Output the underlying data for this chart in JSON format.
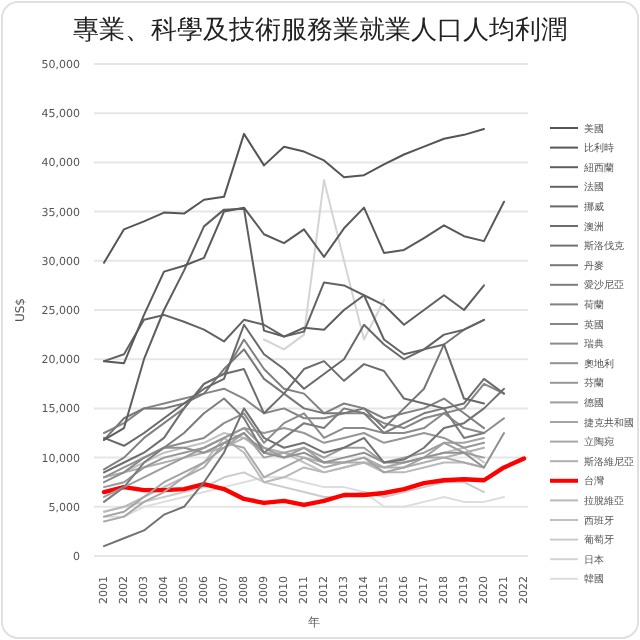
{
  "chart_data": {
    "type": "line",
    "title": "專業、科學及技術服務業就業人口人均利潤",
    "xlabel": "年",
    "ylabel": "US$",
    "categories": [
      "2001",
      "2002",
      "2003",
      "2004",
      "2005",
      "2006",
      "2007",
      "2008",
      "2009",
      "2010",
      "2011",
      "2012",
      "2013",
      "2014",
      "2015",
      "2016",
      "2017",
      "2018",
      "2019",
      "2020",
      "2021",
      "2022"
    ],
    "ylim": [
      0,
      50000
    ],
    "yticks": [
      {
        "value": 0,
        "label": "0"
      },
      {
        "value": 5000,
        "label": "5,000"
      },
      {
        "value": 10000,
        "label": "10,000"
      },
      {
        "value": 15000,
        "label": "15,000"
      },
      {
        "value": 20000,
        "label": "20,000"
      },
      {
        "value": 25000,
        "label": "25,000"
      },
      {
        "value": 30000,
        "label": "30,000"
      },
      {
        "value": 35000,
        "label": "35,000"
      },
      {
        "value": 40000,
        "label": "40,000"
      },
      {
        "value": 45000,
        "label": "45,000"
      },
      {
        "value": 50000,
        "label": "50,000"
      }
    ],
    "grid": "y",
    "legend": "right",
    "series": [
      {
        "name": "美國",
        "color": "#555555",
        "values": [
          29800,
          33200,
          34000,
          34900,
          34800,
          36200,
          36500,
          42900,
          39700,
          41600,
          41100,
          40200,
          38500,
          38700,
          39800,
          40800,
          41600,
          42400,
          42800,
          43400,
          null,
          null
        ]
      },
      {
        "name": "比利時",
        "color": "#595959",
        "values": [
          19800,
          19600,
          24500,
          28900,
          29500,
          30300,
          35000,
          35400,
          32700,
          31800,
          33200,
          30400,
          33300,
          35400,
          30800,
          31100,
          32300,
          33600,
          32500,
          32000,
          36000,
          null
        ]
      },
      {
        "name": "紐西蘭",
        "color": "#5e5e5e",
        "values": [
          11800,
          13000,
          20000,
          25000,
          29000,
          33500,
          35200,
          35300,
          22900,
          22300,
          23200,
          23000,
          25000,
          26500,
          25500,
          23500,
          25000,
          26500,
          25000,
          27500,
          null,
          null
        ]
      },
      {
        "name": "法國",
        "color": "#636363",
        "values": [
          19800,
          20500,
          24000,
          24500,
          23800,
          23000,
          21800,
          24000,
          23500,
          22300,
          22800,
          27800,
          27500,
          26500,
          22000,
          20500,
          21000,
          22500,
          23000,
          24000,
          null,
          null
        ]
      },
      {
        "name": "挪威",
        "color": "#686868",
        "values": [
          12000,
          11200,
          12500,
          14000,
          15500,
          17000,
          18000,
          23500,
          20500,
          19000,
          17000,
          18500,
          20000,
          23500,
          21500,
          20000,
          21000,
          21500,
          16000,
          15500,
          null,
          null
        ]
      },
      {
        "name": "澳洲",
        "color": "#6d6d6d",
        "values": [
          8500,
          9500,
          10500,
          12000,
          15000,
          17500,
          18500,
          19000,
          14500,
          16500,
          19000,
          19800,
          17800,
          19500,
          18800,
          16000,
          15500,
          15000,
          15500,
          18000,
          16500,
          null
        ]
      },
      {
        "name": "斯洛伐克",
        "color": "#727272",
        "values": [
          1000,
          1800,
          2600,
          4200,
          5000,
          7500,
          10500,
          15000,
          12000,
          11000,
          11500,
          10500,
          11000,
          12000,
          9500,
          9800,
          11000,
          13000,
          13500,
          15000,
          17000,
          null
        ]
      },
      {
        "name": "丹麥",
        "color": "#777777",
        "values": [
          11800,
          14000,
          15000,
          15000,
          15500,
          16500,
          19000,
          21000,
          18000,
          16500,
          15000,
          14500,
          14500,
          15000,
          13000,
          15000,
          17000,
          21500,
          23000,
          24000,
          null,
          null
        ]
      },
      {
        "name": "愛沙尼亞",
        "color": "#7c7c7c",
        "values": [
          5500,
          7000,
          9500,
          11000,
          12500,
          14500,
          16000,
          14000,
          10500,
          12000,
          13500,
          13000,
          15000,
          14500,
          12500,
          13500,
          14500,
          15000,
          12000,
          12500,
          null,
          null
        ]
      },
      {
        "name": "荷蘭",
        "color": "#818181",
        "values": [
          8800,
          10000,
          12000,
          13500,
          15000,
          17500,
          18500,
          22000,
          19000,
          17000,
          16500,
          14500,
          15500,
          15000,
          14000,
          14500,
          15000,
          16000,
          14500,
          13000,
          null,
          null
        ]
      },
      {
        "name": "英國",
        "color": "#868686",
        "values": [
          12500,
          13500,
          15000,
          15500,
          16000,
          16500,
          17000,
          16000,
          14500,
          15000,
          14000,
          14000,
          14500,
          14500,
          13500,
          13000,
          14000,
          14500,
          15000,
          17500,
          16500,
          null
        ]
      },
      {
        "name": "瑞典",
        "color": "#8b8b8b",
        "values": [
          7500,
          8500,
          10000,
          11000,
          11500,
          12000,
          13500,
          14500,
          11500,
          13500,
          14500,
          12000,
          13000,
          13000,
          12500,
          12500,
          13000,
          14500,
          13000,
          12500,
          14000,
          null
        ]
      },
      {
        "name": "奧地利",
        "color": "#919191",
        "values": [
          8000,
          9000,
          10000,
          11000,
          11000,
          10500,
          11500,
          12500,
          10500,
          10000,
          10500,
          9500,
          10000,
          10500,
          9500,
          9500,
          10000,
          10500,
          10500,
          9000,
          12500,
          null
        ]
      },
      {
        "name": "芬蘭",
        "color": "#979797",
        "values": [
          7000,
          7500,
          9000,
          10000,
          10500,
          11000,
          12000,
          13000,
          12500,
          13000,
          12500,
          11500,
          12000,
          12500,
          11500,
          12000,
          12500,
          12000,
          11000,
          11500,
          null,
          null
        ]
      },
      {
        "name": "德國",
        "color": "#9d9d9d",
        "values": [
          6000,
          7000,
          8000,
          9000,
          10000,
          11000,
          12000,
          13000,
          11000,
          10000,
          11000,
          10000,
          11000,
          11000,
          9500,
          10000,
          10500,
          11500,
          10500,
          10000,
          null,
          null
        ]
      },
      {
        "name": "捷克共和國",
        "color": "#a3a3a3",
        "values": [
          4000,
          4500,
          6000,
          7500,
          8500,
          9500,
          11000,
          12500,
          10000,
          10500,
          11000,
          9500,
          9500,
          10000,
          8500,
          9000,
          10000,
          11500,
          11500,
          12000,
          null,
          null
        ]
      },
      {
        "name": "立陶宛",
        "color": "#a9a9a9",
        "values": [
          3500,
          4000,
          5500,
          6500,
          8000,
          9000,
          11500,
          11000,
          8000,
          9000,
          10000,
          9000,
          9500,
          10000,
          9000,
          9500,
          10000,
          10000,
          9500,
          9000,
          null,
          null
        ]
      },
      {
        "name": "斯洛維尼亞",
        "color": "#afafaf",
        "values": [
          8000,
          8500,
          9000,
          9500,
          10000,
          10500,
          11000,
          12000,
          11000,
          10500,
          10000,
          9500,
          9500,
          9500,
          9000,
          9000,
          9500,
          10000,
          10500,
          11000,
          null,
          null
        ]
      },
      {
        "name": "台灣",
        "color": "#ff0000",
        "values": [
          6500,
          7000,
          6700,
          6700,
          6800,
          7300,
          6800,
          5800,
          5400,
          5600,
          5200,
          5600,
          6200,
          6200,
          6400,
          6800,
          7400,
          7700,
          7800,
          7700,
          9000,
          9900
        ]
      },
      {
        "name": "拉脫維亞",
        "color": "#b9b9b9",
        "values": [
          4500,
          5000,
          6000,
          7000,
          8000,
          9500,
          12000,
          10500,
          7500,
          8000,
          9000,
          8500,
          9000,
          9500,
          8500,
          8500,
          9000,
          9500,
          9500,
          9000,
          null,
          null
        ]
      },
      {
        "name": "西班牙",
        "color": "#c2c2c2",
        "values": [
          8000,
          8500,
          9500,
          10500,
          11000,
          11500,
          12500,
          12000,
          10500,
          10500,
          9500,
          8500,
          9000,
          9500,
          9000,
          9500,
          10000,
          10500,
          11000,
          9500,
          null,
          null
        ]
      },
      {
        "name": "葡萄牙",
        "color": "#cbcbcb",
        "values": [
          4500,
          5000,
          5500,
          6000,
          6500,
          7000,
          8000,
          8500,
          7500,
          7000,
          6500,
          6000,
          6000,
          6500,
          6000,
          6500,
          7000,
          7500,
          7500,
          6500,
          null,
          null
        ]
      },
      {
        "name": "日本",
        "color": "#d4d4d4",
        "values": [
          null,
          null,
          null,
          null,
          null,
          null,
          null,
          null,
          22000,
          21000,
          22500,
          38200,
          30000,
          22000,
          26000,
          null,
          null,
          null,
          null,
          null,
          null,
          null
        ]
      },
      {
        "name": "韓國",
        "color": "#dddddd",
        "values": [
          4000,
          4000,
          5000,
          5500,
          6000,
          6500,
          7000,
          7500,
          8000,
          8000,
          7500,
          7000,
          7000,
          6500,
          5000,
          5000,
          5500,
          6000,
          5500,
          5500,
          6000,
          null
        ]
      }
    ]
  }
}
